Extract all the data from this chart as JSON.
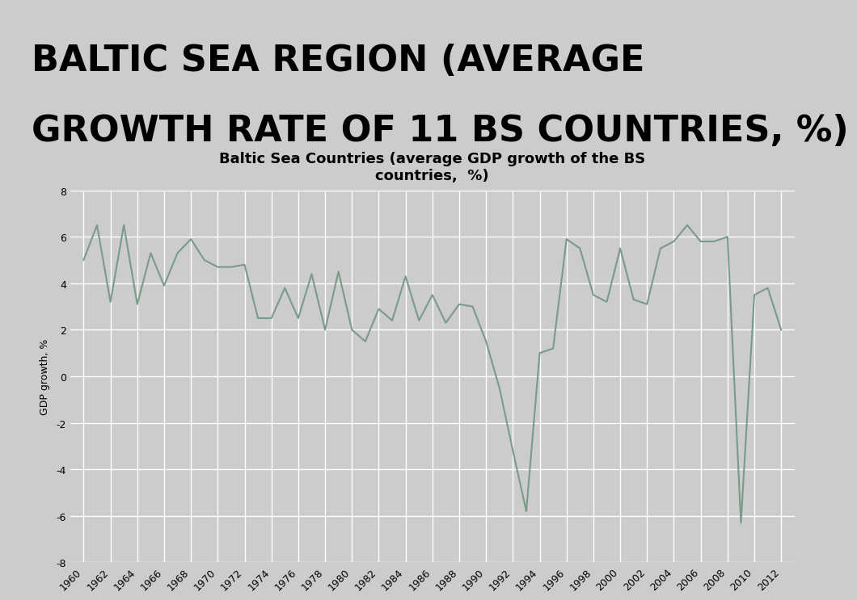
{
  "title_line1": "BALTIC SEA REGION (AVERAGE",
  "title_line2": "GROWTH RATE OF 11 BS COUNTRIES, %)",
  "chart_title": "Baltic Sea Countries (average GDP growth of the BS\ncountries,  %)",
  "ylabel": "GDP growth, %",
  "background_color": "#cccccc",
  "plot_bg_color": "#cccccc",
  "title_bg_color": "#ffffff",
  "line_color": "#7a9a8a",
  "years": [
    1960,
    1961,
    1962,
    1963,
    1964,
    1965,
    1966,
    1967,
    1968,
    1969,
    1970,
    1971,
    1972,
    1973,
    1974,
    1975,
    1976,
    1977,
    1978,
    1979,
    1980,
    1981,
    1982,
    1983,
    1984,
    1985,
    1986,
    1987,
    1988,
    1989,
    1990,
    1991,
    1992,
    1993,
    1994,
    1995,
    1996,
    1997,
    1998,
    1999,
    2000,
    2001,
    2002,
    2003,
    2004,
    2005,
    2006,
    2007,
    2008,
    2009,
    2010,
    2011,
    2012
  ],
  "values": [
    5.0,
    6.5,
    3.2,
    6.5,
    3.1,
    5.3,
    3.9,
    5.3,
    5.9,
    5.0,
    4.7,
    4.7,
    4.8,
    2.5,
    2.5,
    3.8,
    2.5,
    4.4,
    2.0,
    4.5,
    2.0,
    1.5,
    2.9,
    2.4,
    4.3,
    2.4,
    3.5,
    2.3,
    3.1,
    3.0,
    1.5,
    -0.5,
    -3.2,
    -5.8,
    1.0,
    1.2,
    5.9,
    5.5,
    3.5,
    3.2,
    5.5,
    3.3,
    3.1,
    5.5,
    5.8,
    6.5,
    5.8,
    5.8,
    6.0,
    -6.3,
    3.5,
    3.8,
    2.0
  ],
  "ylim": [
    -8,
    8
  ],
  "yticks": [
    -8,
    -6,
    -4,
    -2,
    0,
    2,
    4,
    6,
    8
  ],
  "grid_color": "#ffffff",
  "title_fontsize": 32,
  "chart_title_fontsize": 13,
  "tick_fontsize": 9,
  "ylabel_fontsize": 9,
  "line_width": 1.5,
  "border_color": "#999999"
}
